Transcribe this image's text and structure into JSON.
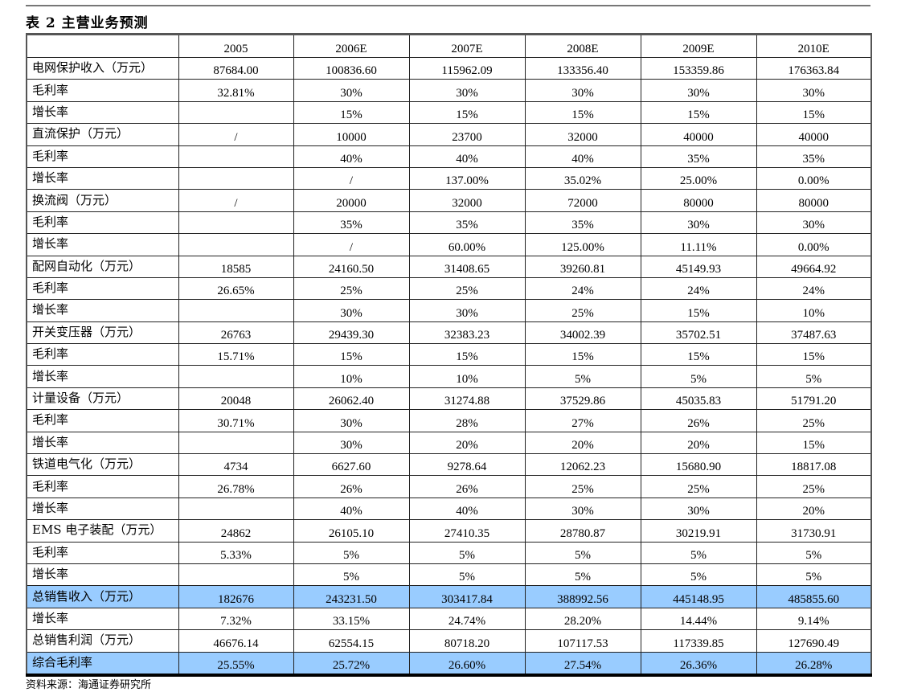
{
  "title": "表 2  主营业务预测",
  "columns": [
    "",
    "2005",
    "2006E",
    "2007E",
    "2008E",
    "2009E",
    "2010E"
  ],
  "rows": [
    {
      "label": "电网保护收入（万元）",
      "values": [
        "87684.00",
        "100836.60",
        "115962.09",
        "133356.40",
        "153359.86",
        "176363.84"
      ]
    },
    {
      "label": "毛利率",
      "values": [
        "32.81%",
        "30%",
        "30%",
        "30%",
        "30%",
        "30%"
      ]
    },
    {
      "label": "增长率",
      "values": [
        "",
        "15%",
        "15%",
        "15%",
        "15%",
        "15%"
      ]
    },
    {
      "label": "直流保护（万元）",
      "values": [
        "/",
        "10000",
        "23700",
        "32000",
        "40000",
        "40000"
      ]
    },
    {
      "label": "毛利率",
      "values": [
        "",
        "40%",
        "40%",
        "40%",
        "35%",
        "35%"
      ]
    },
    {
      "label": "增长率",
      "values": [
        "",
        "/",
        "137.00%",
        "35.02%",
        "25.00%",
        "0.00%"
      ]
    },
    {
      "label": "换流阀（万元）",
      "values": [
        "/",
        "20000",
        "32000",
        "72000",
        "80000",
        "80000"
      ]
    },
    {
      "label": "毛利率",
      "values": [
        "",
        "35%",
        "35%",
        "35%",
        "30%",
        "30%"
      ]
    },
    {
      "label": "增长率",
      "values": [
        "",
        "/",
        "60.00%",
        "125.00%",
        "11.11%",
        "0.00%"
      ]
    },
    {
      "label": "配网自动化（万元）",
      "values": [
        "18585",
        "24160.50",
        "31408.65",
        "39260.81",
        "45149.93",
        "49664.92"
      ]
    },
    {
      "label": "毛利率",
      "values": [
        "26.65%",
        "25%",
        "25%",
        "24%",
        "24%",
        "24%"
      ]
    },
    {
      "label": "增长率",
      "values": [
        "",
        "30%",
        "30%",
        "25%",
        "15%",
        "10%"
      ]
    },
    {
      "label": "开关变压器（万元）",
      "values": [
        "26763",
        "29439.30",
        "32383.23",
        "34002.39",
        "35702.51",
        "37487.63"
      ]
    },
    {
      "label": "毛利率",
      "values": [
        "15.71%",
        "15%",
        "15%",
        "15%",
        "15%",
        "15%"
      ]
    },
    {
      "label": "增长率",
      "values": [
        "",
        "10%",
        "10%",
        "5%",
        "5%",
        "5%"
      ]
    },
    {
      "label": "计量设备（万元）",
      "values": [
        "20048",
        "26062.40",
        "31274.88",
        "37529.86",
        "45035.83",
        "51791.20"
      ]
    },
    {
      "label": "毛利率",
      "values": [
        "30.71%",
        "30%",
        "28%",
        "27%",
        "26%",
        "25%"
      ]
    },
    {
      "label": "增长率",
      "values": [
        "",
        "30%",
        "20%",
        "20%",
        "20%",
        "15%"
      ]
    },
    {
      "label": "铁道电气化（万元）",
      "values": [
        "4734",
        "6627.60",
        "9278.64",
        "12062.23",
        "15680.90",
        "18817.08"
      ]
    },
    {
      "label": "毛利率",
      "values": [
        "26.78%",
        "26%",
        "26%",
        "25%",
        "25%",
        "25%"
      ]
    },
    {
      "label": "增长率",
      "values": [
        "",
        "40%",
        "40%",
        "30%",
        "30%",
        "20%"
      ]
    },
    {
      "label": "EMS 电子装配（万元）",
      "values": [
        "24862",
        "26105.10",
        "27410.35",
        "28780.87",
        "30219.91",
        "31730.91"
      ]
    },
    {
      "label": "毛利率",
      "values": [
        "5.33%",
        "5%",
        "5%",
        "5%",
        "5%",
        "5%"
      ]
    },
    {
      "label": "增长率",
      "values": [
        "",
        "5%",
        "5%",
        "5%",
        "5%",
        "5%"
      ]
    },
    {
      "label": "总销售收入（万元）",
      "highlight": true,
      "values": [
        "182676",
        "243231.50",
        "303417.84",
        "388992.56",
        "445148.95",
        "485855.60"
      ]
    },
    {
      "label": "增长率",
      "values": [
        "7.32%",
        "33.15%",
        "24.74%",
        "28.20%",
        "14.44%",
        "9.14%"
      ]
    },
    {
      "label": "总销售利润（万元）",
      "values": [
        "46676.14",
        "62554.15",
        "80718.20",
        "107117.53",
        "117339.85",
        "127690.49"
      ]
    },
    {
      "label": "综合毛利率",
      "highlight": true,
      "values": [
        "25.55%",
        "25.72%",
        "26.60%",
        "27.54%",
        "26.36%",
        "26.28%"
      ]
    }
  ],
  "source": "资料来源：海通证券研究所",
  "colors": {
    "highlight": "#99ccff"
  }
}
